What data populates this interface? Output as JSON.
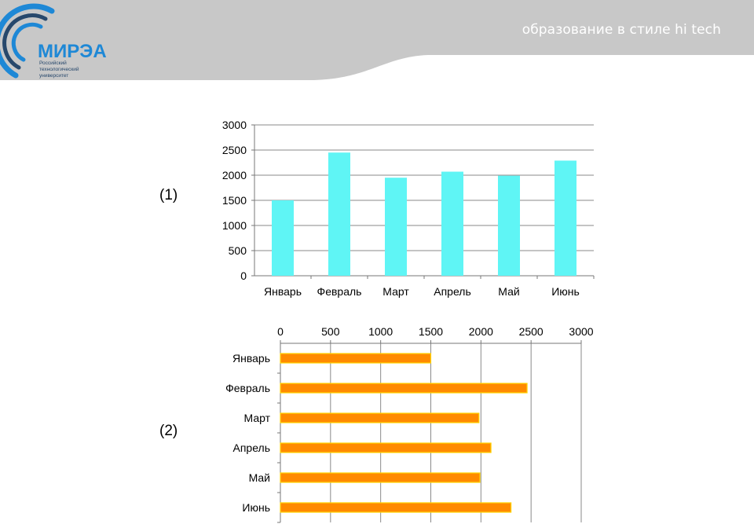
{
  "header": {
    "tagline": "образование в стиле hi tech",
    "logo_name": "МИРЭА",
    "logo_sub": [
      "Российский",
      "технологический",
      "университет"
    ]
  },
  "colors": {
    "header_bg": "#c8c8c8",
    "logo_blue": "#1e88d6",
    "logo_dark": "#27486c",
    "chart1_bar": "#5ff5f5",
    "chart2_bar": "#ff8a00",
    "chart2_bar_edge": "#ffd400"
  },
  "chart_data": [
    {
      "label": "(1)",
      "type": "bar",
      "orientation": "vertical",
      "categories": [
        "Январь",
        "Февраль",
        "Март",
        "Апрель",
        "Май",
        "Июнь"
      ],
      "values": [
        1500,
        2450,
        1950,
        2070,
        1990,
        2290
      ],
      "yticks": [
        "0",
        "500",
        "1000",
        "1500",
        "2000",
        "2500",
        "3000"
      ],
      "ylim": [
        0,
        3000
      ],
      "grid": "horizontal",
      "bar_color": "#5ff5f5"
    },
    {
      "label": "(2)",
      "type": "bar",
      "orientation": "horizontal",
      "categories": [
        "Январь",
        "Февраль",
        "Март",
        "Апрель",
        "Май",
        "Июнь"
      ],
      "values": [
        1500,
        2460,
        1980,
        2100,
        1990,
        2300
      ],
      "xticks": [
        "0",
        "500",
        "1000",
        "1500",
        "2000",
        "2500",
        "3000"
      ],
      "xlim": [
        0,
        3000
      ],
      "grid": "vertical",
      "axis_position": "top",
      "bar_color": "#ff8a00"
    }
  ]
}
